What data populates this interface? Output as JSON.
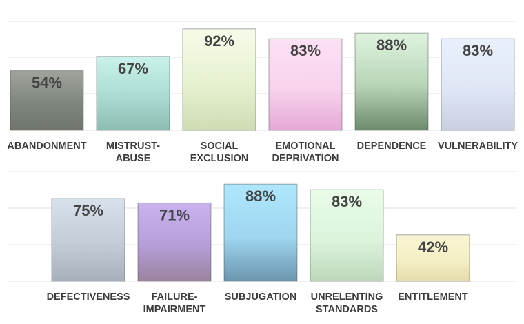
{
  "chart_data": [
    {
      "type": "bar",
      "categories": [
        "ABANDONMENT",
        "MISTRUST-ABUSE",
        "SOCIAL EXCLUSION",
        "EMOTIONAL DEPRIVATION",
        "DEPENDENCE",
        "VULNERABILITY"
      ],
      "category_lines": [
        [
          "ABANDONMENT"
        ],
        [
          "MISTRUST-",
          "ABUSE"
        ],
        [
          "SOCIAL",
          "EXCLUSION"
        ],
        [
          "EMOTIONAL",
          "DEPRIVATION"
        ],
        [
          "DEPENDENCE"
        ],
        [
          "VULNERABILITY"
        ]
      ],
      "values": [
        54,
        67,
        92,
        83,
        88,
        83
      ],
      "value_labels": [
        "54%",
        "67%",
        "92%",
        "83%",
        "88%",
        "83%"
      ],
      "colors": [
        [
          "#9fa39c",
          "#7f867d",
          "#6f756c"
        ],
        [
          "#c9f2ea",
          "#a9dbd2",
          "#8cbdb3"
        ],
        [
          "#f6fbe9",
          "#e6f1cf",
          "#cfdcb4"
        ],
        [
          "#fde0f4",
          "#f7d3ec",
          "#e7a8d7"
        ],
        [
          "#dff3df",
          "#b7d3b7",
          "#6c8a6e"
        ],
        [
          "#e9f0fd",
          "#dfe6f5",
          "#c9cfdf"
        ]
      ],
      "grid": true,
      "ylim": [
        0,
        100
      ]
    },
    {
      "type": "bar",
      "categories": [
        "DEFECTIVENESS",
        "FAILURE-IMPAIRMENT",
        "SUBJUGATION",
        "UNRELENTING STANDARDS",
        "ENTITLEMENT"
      ],
      "category_lines": [
        [
          "DEFECTIVENESS"
        ],
        [
          "FAILURE-",
          "IMPAIRMENT"
        ],
        [
          "SUBJUGATION"
        ],
        [
          "UNRELENTING",
          "STANDARDS"
        ],
        [
          "ENTITLEMENT"
        ]
      ],
      "values": [
        75,
        71,
        88,
        83,
        42
      ],
      "value_labels": [
        "75%",
        "71%",
        "88%",
        "83%",
        "42%"
      ],
      "colors": [
        [
          "#d7e1ec",
          "#c3cbd6",
          "#a7b0ba"
        ],
        [
          "#c9b3ef",
          "#b59ed8",
          "#9a829e"
        ],
        [
          "#aee7fd",
          "#9fd5ef",
          "#6b95ad"
        ],
        [
          "#e9fde9",
          "#dcf3dc",
          "#bcd8bc"
        ],
        [
          "#f8f5d2",
          "#f4efc6",
          "#e6dbaa"
        ]
      ],
      "grid": true,
      "ylim": [
        0,
        100
      ]
    }
  ]
}
